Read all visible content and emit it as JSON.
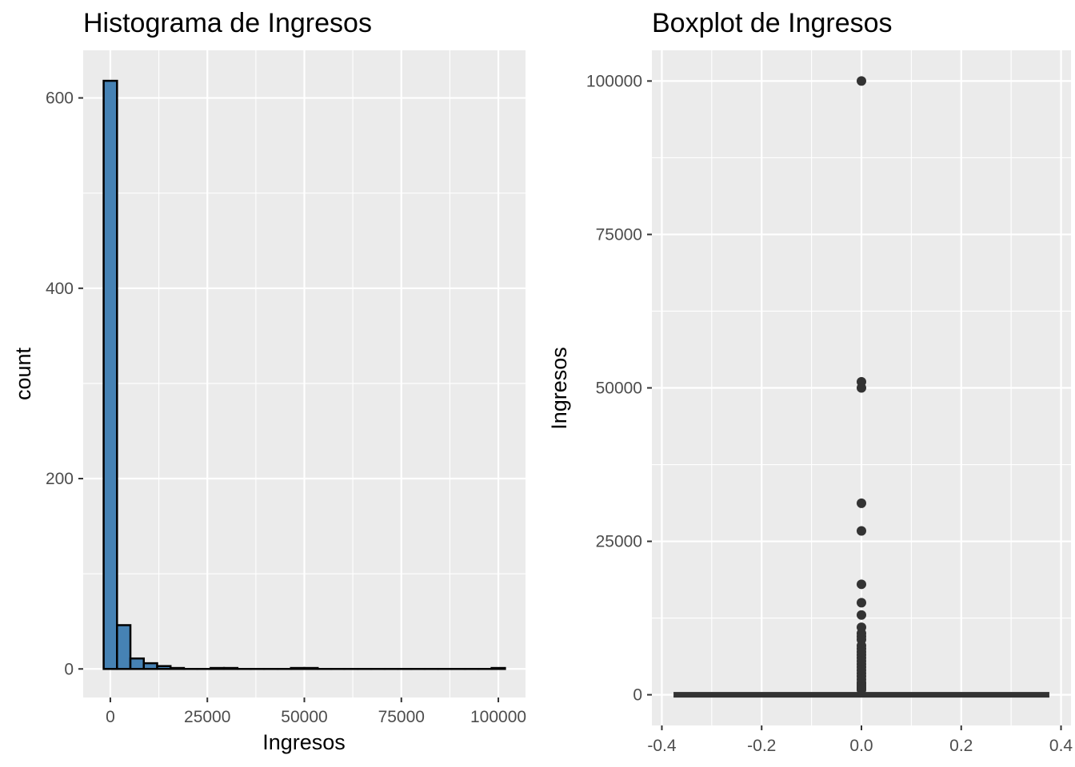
{
  "chart_data": [
    {
      "type": "bar",
      "subtype": "histogram",
      "title": "Histograma de Ingresos",
      "xlabel": "Ingresos",
      "ylabel": "count",
      "xlim": [
        -7000,
        107000
      ],
      "ylim": [
        -30,
        650
      ],
      "x_ticks": [
        0,
        25000,
        50000,
        75000,
        100000
      ],
      "x_tick_labels": [
        "0",
        "25000",
        "50000",
        "75000",
        "100000"
      ],
      "y_ticks": [
        0,
        200,
        400,
        600
      ],
      "y_tick_labels": [
        "0",
        "200",
        "400",
        "600"
      ],
      "bin_width": 3448,
      "bins": [
        {
          "x0": -1724,
          "x1": 1724,
          "count": 618
        },
        {
          "x0": 1724,
          "x1": 5172,
          "count": 46
        },
        {
          "x0": 5172,
          "x1": 8620,
          "count": 11
        },
        {
          "x0": 8620,
          "x1": 12068,
          "count": 6
        },
        {
          "x0": 12068,
          "x1": 15516,
          "count": 3
        },
        {
          "x0": 15516,
          "x1": 18964,
          "count": 1
        },
        {
          "x0": 18964,
          "x1": 22412,
          "count": 0
        },
        {
          "x0": 22412,
          "x1": 25860,
          "count": 0
        },
        {
          "x0": 25860,
          "x1": 29308,
          "count": 1
        },
        {
          "x0": 29308,
          "x1": 32756,
          "count": 1
        },
        {
          "x0": 32756,
          "x1": 36204,
          "count": 0
        },
        {
          "x0": 36204,
          "x1": 39652,
          "count": 0
        },
        {
          "x0": 39652,
          "x1": 43100,
          "count": 0
        },
        {
          "x0": 43100,
          "x1": 46548,
          "count": 0
        },
        {
          "x0": 46548,
          "x1": 49996,
          "count": 1
        },
        {
          "x0": 49996,
          "x1": 53444,
          "count": 1
        },
        {
          "x0": 53444,
          "x1": 56892,
          "count": 0
        },
        {
          "x0": 56892,
          "x1": 60340,
          "count": 0
        },
        {
          "x0": 60340,
          "x1": 63788,
          "count": 0
        },
        {
          "x0": 63788,
          "x1": 67236,
          "count": 0
        },
        {
          "x0": 67236,
          "x1": 70684,
          "count": 0
        },
        {
          "x0": 70684,
          "x1": 74132,
          "count": 0
        },
        {
          "x0": 74132,
          "x1": 77580,
          "count": 0
        },
        {
          "x0": 77580,
          "x1": 81028,
          "count": 0
        },
        {
          "x0": 81028,
          "x1": 84476,
          "count": 0
        },
        {
          "x0": 84476,
          "x1": 87924,
          "count": 0
        },
        {
          "x0": 87924,
          "x1": 91372,
          "count": 0
        },
        {
          "x0": 91372,
          "x1": 94820,
          "count": 0
        },
        {
          "x0": 94820,
          "x1": 98268,
          "count": 0
        },
        {
          "x0": 98268,
          "x1": 101716,
          "count": 1
        }
      ],
      "colors": {
        "fill": "#4682b4",
        "stroke": "#000000",
        "panel": "#ebebeb",
        "grid": "#ffffff"
      },
      "grid": true
    },
    {
      "type": "boxplot",
      "title": "Boxplot de Ingresos",
      "xlabel": "",
      "ylabel": "Ingresos",
      "xlim": [
        -0.42,
        0.42
      ],
      "ylim": [
        -5000,
        105000
      ],
      "x_ticks": [
        -0.4,
        -0.2,
        0.0,
        0.2,
        0.4
      ],
      "x_tick_labels": [
        "-0.4",
        "-0.2",
        "0.0",
        "0.2",
        "0.4"
      ],
      "y_ticks": [
        0,
        25000,
        50000,
        75000,
        100000
      ],
      "y_tick_labels": [
        "0",
        "25000",
        "50000",
        "75000",
        "100000"
      ],
      "box": {
        "x": 0.0,
        "width": 0.75,
        "q1": 0,
        "median": 0,
        "q3": 0,
        "whisker_low": 0,
        "whisker_high": 0
      },
      "outliers": [
        100000,
        51000,
        50000,
        31200,
        26700,
        18000,
        15000,
        13000,
        11000,
        10000,
        9500,
        9000,
        8000,
        7500,
        7000,
        6500,
        6000,
        5500,
        5000,
        4500,
        4000,
        3500,
        3000,
        2500,
        2000,
        1800,
        1500,
        1200,
        1000,
        800
      ],
      "colors": {
        "point": "#333333",
        "box": "#333333",
        "panel": "#ebebeb",
        "grid": "#ffffff"
      },
      "grid": true
    }
  ]
}
